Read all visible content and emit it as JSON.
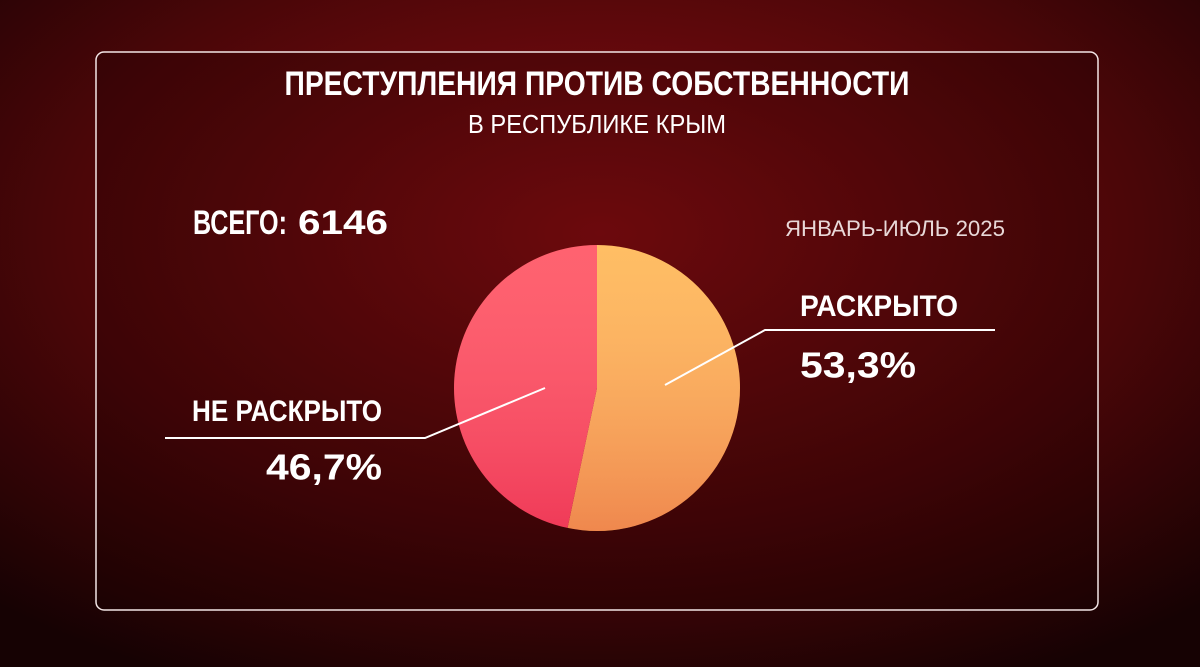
{
  "chart_data": {
    "type": "pie",
    "title": "ПРЕСТУПЛЕНИЯ ПРОТИВ СОБСТВЕННОСТИ",
    "subtitle": "В РЕСПУБЛИКЕ КРЫМ",
    "total_label": "ВСЕГО:",
    "total": 6146,
    "period": "ЯНВАРЬ-ИЮЛЬ 2025",
    "categories": [
      "РАСКРЫТО",
      "НЕ РАСКРЫТО"
    ],
    "values": [
      53.3,
      46.7
    ],
    "value_labels": [
      "53,3%",
      "46,7%"
    ],
    "colors": [
      "#ffb54f",
      "#ff4d5c"
    ]
  }
}
